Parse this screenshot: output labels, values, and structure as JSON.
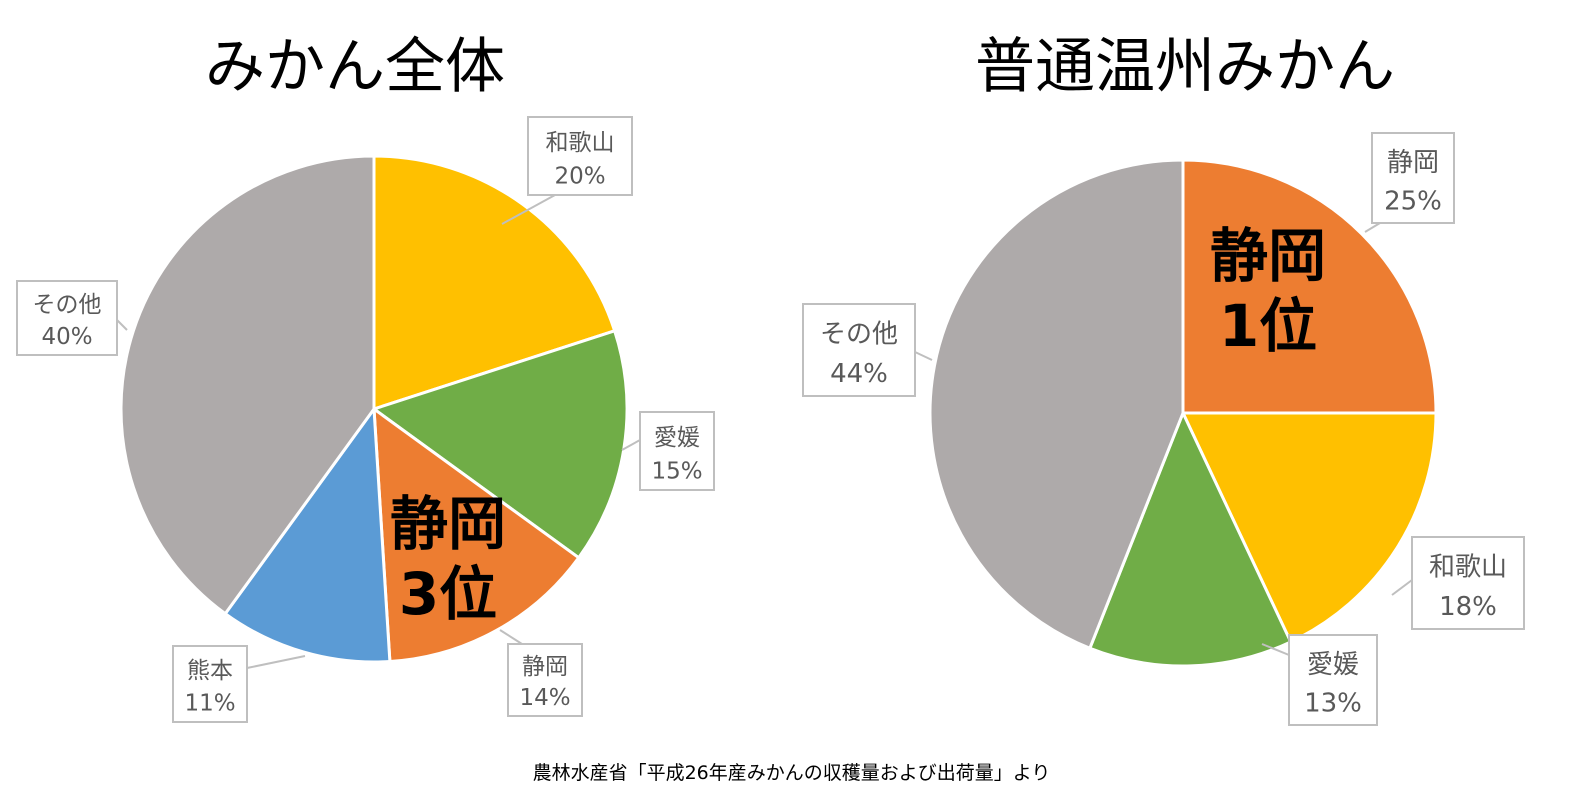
{
  "chart_data": [
    {
      "type": "pie",
      "title": "みかん全体",
      "slices": [
        {
          "label": "和歌山",
          "value": 20,
          "display": "20%",
          "color": "#FFC000"
        },
        {
          "label": "愛媛",
          "value": 15,
          "display": "15%",
          "color": "#70AD47"
        },
        {
          "label": "静岡",
          "value": 14,
          "display": "14%",
          "color": "#ED7D31"
        },
        {
          "label": "熊本",
          "value": 11,
          "display": "11%",
          "color": "#5B9BD5"
        },
        {
          "label": "その他",
          "value": 40,
          "display": "40%",
          "color": "#AEAAAA"
        }
      ],
      "annotation": {
        "line1": "静岡",
        "line2": "3位"
      }
    },
    {
      "type": "pie",
      "title": "普通温州みかん",
      "slices": [
        {
          "label": "静岡",
          "value": 25,
          "display": "25%",
          "color": "#ED7D31"
        },
        {
          "label": "和歌山",
          "value": 18,
          "display": "18%",
          "color": "#FFC000"
        },
        {
          "label": "愛媛",
          "value": 13,
          "display": "13%",
          "color": "#70AD47"
        },
        {
          "label": "その他",
          "value": 44,
          "display": "44%",
          "color": "#AEAAAA"
        }
      ],
      "annotation": {
        "line1": "静岡",
        "line2": "1位"
      }
    }
  ],
  "source": "農林水産省「平成26年産みかんの収穫量および出荷量」より"
}
